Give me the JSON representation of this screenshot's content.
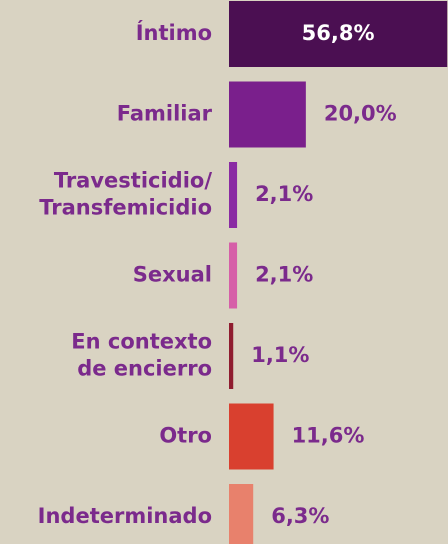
{
  "chart_data": {
    "type": "bar",
    "orientation": "horizontal",
    "categories": [
      "Íntimo",
      "Familiar",
      "Travesticidio/\nTransfemicidio",
      "Sexual",
      "En contexto\nde encierro",
      "Otro",
      "Indeterminado"
    ],
    "values": [
      56.8,
      20.0,
      2.1,
      2.1,
      1.1,
      11.6,
      6.3
    ],
    "value_labels": [
      "56,8%",
      "20,0%",
      "2,1%",
      "2,1%",
      "1,1%",
      "11,6%",
      "6,3%"
    ],
    "colors": [
      "#4b0f52",
      "#7a1f8c",
      "#8a2aa3",
      "#d65fa8",
      "#8f1c2f",
      "#d9402f",
      "#e8816c"
    ],
    "xlim": [
      0,
      57
    ]
  }
}
